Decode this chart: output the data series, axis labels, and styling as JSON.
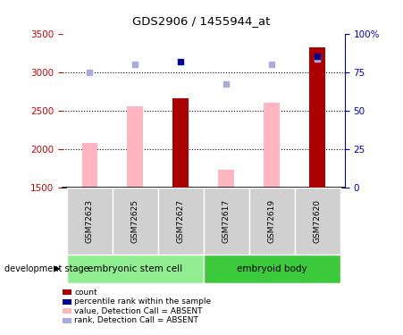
{
  "title": "GDS2906 / 1455944_at",
  "samples": [
    "GSM72623",
    "GSM72625",
    "GSM72627",
    "GSM72617",
    "GSM72619",
    "GSM72620"
  ],
  "groups": [
    {
      "label": "embryonic stem cell",
      "color": "#90EE90",
      "indices": [
        0,
        1,
        2
      ]
    },
    {
      "label": "embryoid body",
      "color": "#3CC93C",
      "indices": [
        3,
        4,
        5
      ]
    }
  ],
  "ylim_left": [
    1500,
    3500
  ],
  "ylim_right": [
    0,
    100
  ],
  "yticks_left": [
    1500,
    2000,
    2500,
    3000,
    3500
  ],
  "yticks_right": [
    0,
    25,
    50,
    75,
    100
  ],
  "yticklabels_right": [
    "0",
    "25",
    "50",
    "75",
    "100%"
  ],
  "dark_red_bars": {
    "GSM72627": 2660,
    "GSM72620": 3320
  },
  "light_pink_bars": {
    "GSM72623": 2080,
    "GSM72625": 2555,
    "GSM72617": 1730,
    "GSM72619": 2600
  },
  "blue_squares": {
    "GSM72627": 3130,
    "GSM72620": 3200
  },
  "light_blue_squares": {
    "GSM72623": 2995,
    "GSM72625": 3100,
    "GSM72617": 2840,
    "GSM72619": 3100,
    "GSM72620": 3175
  },
  "bar_width": 0.35,
  "bar_bottom": 1500,
  "dark_red_color": "#AA0000",
  "light_pink_color": "#FFB6C1",
  "blue_color": "#000099",
  "light_blue_color": "#AAAADD",
  "axis_color_left": "#CC0000",
  "axis_color_right": "#0000BB",
  "dotted_lines": [
    2000,
    2500,
    3000
  ],
  "legend_items": [
    {
      "color": "#AA0000",
      "label": "count"
    },
    {
      "color": "#000099",
      "label": "percentile rank within the sample"
    },
    {
      "color": "#FFB6C1",
      "label": "value, Detection Call = ABSENT"
    },
    {
      "color": "#AAAADD",
      "label": "rank, Detection Call = ABSENT"
    }
  ]
}
